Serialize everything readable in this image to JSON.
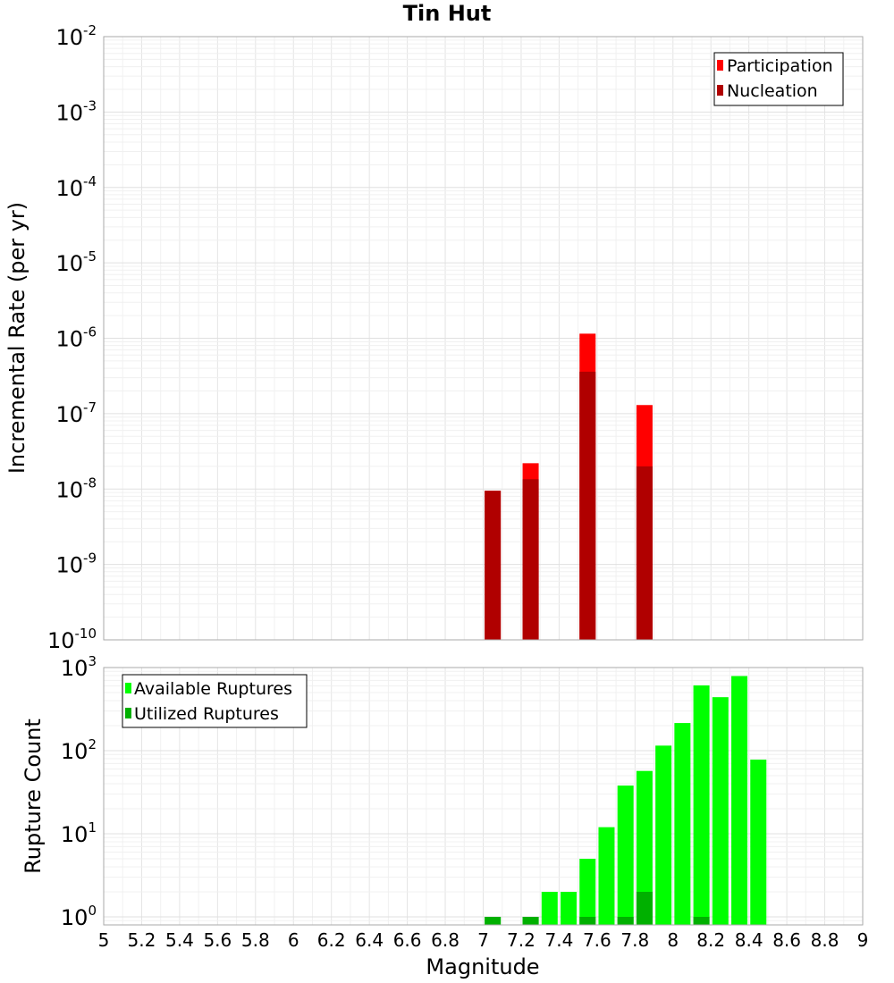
{
  "chart_data": [
    {
      "type": "bar",
      "title": "Tin Hut",
      "ylabel": "Incremental Rate (per yr)",
      "xlabel": "",
      "xlim": [
        5,
        9
      ],
      "ylim": [
        1e-10,
        0.01
      ],
      "yscale": "log",
      "ytick_base": "10",
      "ytick_exponents": [
        "-2",
        "-3",
        "-4",
        "-5",
        "-6",
        "-7",
        "-8",
        "-9",
        "-10"
      ],
      "grid": true,
      "legend_position": "top-right",
      "series": [
        {
          "name": "Participation",
          "color": "#ff0000",
          "x": [
            7.05,
            7.25,
            7.55,
            7.85
          ],
          "values": [
            9.5e-09,
            2.2e-08,
            1.15e-06,
            1.3e-07
          ]
        },
        {
          "name": "Nucleation",
          "color": "#b00000",
          "x": [
            7.05,
            7.25,
            7.55,
            7.85
          ],
          "values": [
            9.5e-09,
            1.35e-08,
            3.6e-07,
            2e-08
          ]
        }
      ]
    },
    {
      "type": "bar",
      "title": "",
      "ylabel": "Rupture Count",
      "xlabel": "Magnitude",
      "xlim": [
        5,
        9
      ],
      "ylim": [
        0.8,
        1000
      ],
      "yscale": "log",
      "ytick_base": "10",
      "ytick_exponents": [
        "3",
        "2",
        "1",
        "0"
      ],
      "xtick_labels": [
        "5",
        "5.2",
        "5.4",
        "5.6",
        "5.8",
        "6",
        "6.2",
        "6.4",
        "6.6",
        "6.8",
        "7",
        "7.2",
        "7.4",
        "7.6",
        "7.8",
        "8",
        "8.2",
        "8.4",
        "8.6",
        "8.8",
        "9"
      ],
      "grid": true,
      "legend_position": "top-left",
      "series": [
        {
          "name": "Available Ruptures",
          "color": "#00ff00",
          "x": [
            7.05,
            7.25,
            7.35,
            7.45,
            7.55,
            7.65,
            7.75,
            7.85,
            7.95,
            8.05,
            8.15,
            8.25,
            8.35,
            8.45
          ],
          "values": [
            1,
            1,
            2,
            2,
            5,
            12,
            38,
            57,
            115,
            215,
            610,
            440,
            790,
            78
          ]
        },
        {
          "name": "Utilized Ruptures",
          "color": "#00b000",
          "x": [
            7.05,
            7.25,
            7.55,
            7.75,
            7.85,
            8.15
          ],
          "values": [
            1,
            1,
            1,
            1,
            2,
            1
          ]
        }
      ]
    }
  ]
}
